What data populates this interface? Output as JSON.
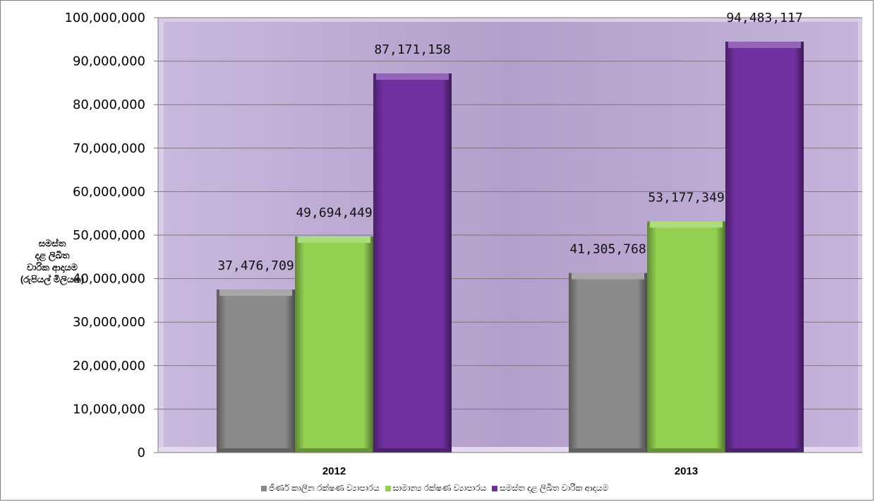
{
  "chart_data": {
    "type": "bar",
    "categories": [
      "2012",
      "2013"
    ],
    "series": [
      {
        "name": "ජීර්ණ කාලීන රක්ෂණ ව්‍යාපාරය",
        "values": [
          37476709,
          41305768
        ],
        "color": "#8a8a8a"
      },
      {
        "name": "සාමාන්‍ය රක්ෂණ ව්‍යාපාරය",
        "values": [
          49694449,
          53177349
        ],
        "color": "#92d050"
      },
      {
        "name": "සමස්ත දළ ලිඛිත වාරික ආදායම",
        "values": [
          87171158,
          94483117
        ],
        "color": "#7030a0"
      }
    ],
    "data_labels": [
      [
        "37,476,709",
        "41,305,768"
      ],
      [
        "49,694,449",
        "53,177,349"
      ],
      [
        "87,171,158",
        "94,483,117"
      ]
    ],
    "ylabel_lines": [
      "සමස්ත",
      "දළ ලිඛිත",
      "වාරික ආදායම",
      "(රුපියල් මිලියන)"
    ],
    "ylim": [
      0,
      100000000
    ],
    "yticks": [
      0,
      10000000,
      20000000,
      30000000,
      40000000,
      50000000,
      60000000,
      70000000,
      80000000,
      90000000,
      100000000
    ],
    "ytick_labels": [
      "0",
      "10,000,000",
      "20,000,000",
      "30,000,000",
      "40,000,000",
      "50,000,000",
      "60,000,000",
      "70,000,000",
      "80,000,000",
      "90,000,000",
      "100,000,000"
    ],
    "grid": true,
    "legend_position": "bottom",
    "plot_background": "#b09cc8"
  }
}
